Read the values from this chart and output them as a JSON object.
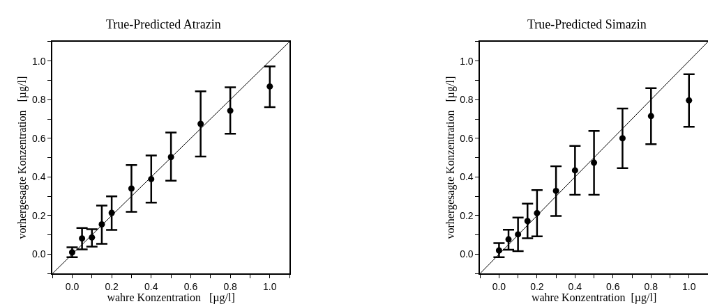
{
  "chart_data": [
    {
      "type": "scatter",
      "title": "True-Predicted Atrazin",
      "xlabel": "wahre Konzentration   [µg/l]",
      "ylabel": "vorhergesagte Konzentration   [µg/l]",
      "xlim": [
        -0.1,
        1.1
      ],
      "ylim": [
        -0.1,
        1.1
      ],
      "xticks": [
        {
          "value": -0.1,
          "label": null
        },
        {
          "value": 0,
          "label": "0.0"
        },
        {
          "value": 0.1,
          "label": null
        },
        0.2,
        {
          "value": 0.3,
          "label": null
        },
        0.4,
        {
          "value": 0.5,
          "label": null
        },
        0.6,
        {
          "value": 0.7,
          "label": null
        },
        0.8,
        {
          "value": 0.9,
          "label": null
        },
        {
          "value": 1,
          "label": "1.0"
        },
        {
          "value": 1.1,
          "label": null
        }
      ],
      "yticks": [
        {
          "value": -0.1,
          "label": null
        },
        {
          "value": 0,
          "label": "0.0"
        },
        {
          "value": 0.1,
          "label": null
        },
        0.2,
        {
          "value": 0.3,
          "label": null
        },
        0.4,
        {
          "value": 0.5,
          "label": null
        },
        0.6,
        {
          "value": 0.7,
          "label": null
        },
        0.8,
        {
          "value": 0.9,
          "label": null
        },
        {
          "value": 1,
          "label": "1.0"
        },
        {
          "value": 1.1,
          "label": null
        }
      ],
      "series": [
        {
          "marker": "circle",
          "color": "#000000",
          "x": [
            0,
            0.05,
            0.1,
            0.15,
            0.2,
            0.3,
            0.4,
            0.5,
            0.65,
            0.8,
            1.0
          ],
          "values": [
            0.01,
            0.082,
            0.087,
            0.155,
            0.214,
            0.34,
            0.389,
            0.503,
            0.675,
            0.743,
            0.868
          ],
          "errors": [
            [
              -0.015,
              0.036
            ],
            [
              0.025,
              0.136
            ],
            [
              0.04,
              0.13
            ],
            [
              0.054,
              0.252
            ],
            [
              0.126,
              0.3
            ],
            [
              0.22,
              0.462
            ],
            [
              0.267,
              0.511
            ],
            [
              0.381,
              0.63
            ],
            [
              0.506,
              0.843
            ],
            [
              0.624,
              0.864
            ],
            [
              0.761,
              0.972
            ]
          ]
        },
        {
          "type": "line",
          "color": "#000000",
          "x": [
            -0.1,
            1.1
          ],
          "values": [
            -0.1,
            1.1
          ]
        }
      ]
    },
    {
      "type": "scatter",
      "title": "True-Predicted Simazin",
      "xlabel": "wahre Konzentration  [µg/l]",
      "ylabel": "vorhergesagte Konzentration   [µg/l]",
      "xlim": [
        -0.1,
        1.1
      ],
      "ylim": [
        -0.1,
        1.1
      ],
      "xticks": [
        {
          "value": -0.1,
          "label": null
        },
        {
          "value": 0,
          "label": "0.0"
        },
        {
          "value": 0.1,
          "label": null
        },
        0.2,
        {
          "value": 0.3,
          "label": null
        },
        0.4,
        {
          "value": 0.5,
          "label": null
        },
        0.6,
        {
          "value": 0.7,
          "label": null
        },
        0.8,
        {
          "value": 0.9,
          "label": null
        },
        {
          "value": 1,
          "label": "1.0"
        },
        {
          "value": 1.1,
          "label": null
        }
      ],
      "yticks": [
        {
          "value": -0.1,
          "label": null
        },
        {
          "value": 0,
          "label": "0.0"
        },
        {
          "value": 0.1,
          "label": null
        },
        0.2,
        {
          "value": 0.3,
          "label": null
        },
        0.4,
        {
          "value": 0.5,
          "label": null
        },
        0.6,
        {
          "value": 0.7,
          "label": null
        },
        0.8,
        {
          "value": 0.9,
          "label": null
        },
        {
          "value": 1,
          "label": "1.0"
        },
        {
          "value": 1.1,
          "label": null
        }
      ],
      "series": [
        {
          "marker": "circle",
          "color": "#000000",
          "x": [
            0,
            0.05,
            0.1,
            0.15,
            0.2,
            0.3,
            0.4,
            0.5,
            0.65,
            0.8,
            1.0
          ],
          "values": [
            0.02,
            0.077,
            0.103,
            0.172,
            0.213,
            0.328,
            0.434,
            0.474,
            0.6,
            0.715,
            0.796
          ],
          "errors": [
            [
              -0.015,
              0.058
            ],
            [
              0.023,
              0.127
            ],
            [
              0.016,
              0.19
            ],
            [
              0.083,
              0.262
            ],
            [
              0.093,
              0.332
            ],
            [
              0.198,
              0.455
            ],
            [
              0.308,
              0.561
            ],
            [
              0.308,
              0.638
            ],
            [
              0.445,
              0.754
            ],
            [
              0.57,
              0.859
            ],
            [
              0.66,
              0.931
            ]
          ]
        },
        {
          "type": "line",
          "color": "#000000",
          "x": [
            -0.1,
            1.1
          ],
          "values": [
            -0.1,
            1.1
          ]
        }
      ]
    }
  ]
}
